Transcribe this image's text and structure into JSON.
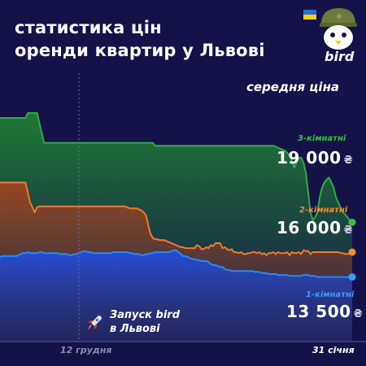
{
  "title_line1": "статистика цін",
  "title_line2": "оренди квартир у Львові",
  "subtitle": "середня ціна",
  "brand": {
    "name": "bird",
    "flag_colors": [
      "#2a6fd6",
      "#f5d20a"
    ],
    "mascot_icon": "bird-helmet-icon"
  },
  "annotation": {
    "line1": "Запуск bird",
    "line2": "в Львові",
    "icon": "rocket-icon"
  },
  "x_ticks": [
    "12 грудня",
    "31 січня"
  ],
  "currency": "₴",
  "colors": {
    "background": "#15124a",
    "three_room": "#2fae3c",
    "two_room": "#f07a26",
    "one_room": "#2f86f0",
    "three_room_label": "#35c23c",
    "two_room_label": "#ff8a2a",
    "one_room_label": "#3a9bff",
    "axis": "#5b5b8a",
    "tick_text": "#8c8caf"
  },
  "chart_data": {
    "type": "area",
    "ylim": [
      7000,
      34000
    ],
    "series": [
      {
        "name": "3-кімнатні",
        "last_label": "19 000",
        "values": [
          29500,
          29500,
          29500,
          29500,
          29500,
          29500,
          29500,
          29500,
          29500,
          29500,
          29500,
          29500,
          30000,
          30000,
          30000,
          30000,
          30000,
          29000,
          28000,
          27000,
          27000,
          27000,
          27000,
          27000,
          27000,
          27000,
          27000,
          27000,
          27000,
          27000,
          27000,
          27000,
          27000,
          27000,
          27000,
          27000,
          27000,
          27000,
          27000,
          27000,
          27000,
          27000,
          27000,
          27000,
          27000,
          27000,
          27000,
          27000,
          27000,
          27000,
          27000,
          27000,
          27000,
          27000,
          27000,
          27000,
          27000,
          27000,
          27000,
          27000,
          27000,
          27000,
          27000,
          27000,
          27000,
          27000,
          27000,
          26700,
          26700,
          26700,
          26700,
          26700,
          26700,
          26700,
          26700,
          26700,
          26700,
          26700,
          26700,
          26700,
          26700,
          26700,
          26700,
          26700,
          26700,
          26700,
          26700,
          26700,
          26700,
          26700,
          26700,
          26700,
          26700,
          26700,
          26700,
          26700,
          26700,
          26700,
          26700,
          26700,
          26700,
          26700,
          26700,
          26700,
          26700,
          26700,
          26700,
          26700,
          26700,
          26700,
          26700,
          26700,
          26700,
          26700,
          26700,
          26700,
          26700,
          26700,
          26700,
          26600,
          26500,
          26400,
          26300,
          26200,
          26000,
          25700,
          25300,
          24500,
          25000,
          25500,
          25500,
          25000,
          24000,
          22000,
          20000,
          19200,
          19500,
          20000,
          21500,
          22500,
          23000,
          23300,
          23500,
          23000,
          22500,
          21500,
          21000,
          20500,
          20000,
          19800,
          19500,
          19200,
          19000
        ]
      },
      {
        "name": "2-кімнатні",
        "last_label": "16 000",
        "values": [
          23000,
          23000,
          23000,
          23000,
          23000,
          23000,
          23000,
          23000,
          23000,
          23000,
          23000,
          23000,
          22000,
          21000,
          20500,
          20000,
          20500,
          20600,
          20600,
          20600,
          20600,
          20600,
          20600,
          20600,
          20600,
          20600,
          20600,
          20600,
          20600,
          20600,
          20600,
          20600,
          20600,
          20600,
          20600,
          20600,
          20600,
          20600,
          20600,
          20600,
          20600,
          20600,
          20600,
          20600,
          20600,
          20600,
          20600,
          20600,
          20600,
          20600,
          20600,
          20600,
          20600,
          20600,
          20600,
          20500,
          20400,
          20400,
          20400,
          20400,
          20300,
          20200,
          20000,
          19700,
          18700,
          17800,
          17400,
          17300,
          17300,
          17200,
          17200,
          17200,
          17100,
          17000,
          16900,
          16800,
          16700,
          16600,
          16500,
          16500,
          16400,
          16400,
          16400,
          16400,
          16400,
          16700,
          16600,
          16300,
          16300,
          16500,
          16400,
          16700,
          16600,
          16900,
          16900,
          16900,
          16400,
          16500,
          16300,
          16200,
          16300,
          16000,
          16000,
          15900,
          16000,
          15800,
          15800,
          15900,
          15900,
          16000,
          16000,
          15900,
          16000,
          15800,
          15900,
          15700,
          15900,
          15900,
          16000,
          15800,
          16000,
          15900,
          15900,
          15900,
          16000,
          15700,
          16000,
          15900,
          15900,
          16000,
          15800,
          16200,
          16100,
          16100,
          15800,
          16000,
          16000,
          16000,
          16000,
          16000,
          16000,
          16000,
          16000,
          16000,
          16000,
          16000,
          16000,
          15900,
          15900,
          15800,
          15800,
          15900,
          16000
        ]
      },
      {
        "name": "1-кімнатні",
        "last_label": "13 500",
        "values": [
          15500,
          15600,
          15600,
          15600,
          15600,
          15600,
          15600,
          15600,
          15700,
          15800,
          15900,
          15900,
          16000,
          15900,
          15900,
          15900,
          15900,
          16000,
          16000,
          15900,
          15900,
          15900,
          15900,
          15900,
          15900,
          15900,
          15800,
          15800,
          15800,
          15800,
          15700,
          15700,
          15800,
          15800,
          15900,
          16000,
          16100,
          16100,
          16000,
          16000,
          15900,
          15900,
          15900,
          15900,
          15900,
          15900,
          15900,
          15900,
          15900,
          16000,
          16000,
          16000,
          16000,
          16000,
          16000,
          16000,
          15900,
          15900,
          15800,
          15800,
          15800,
          15700,
          15700,
          15800,
          15800,
          15900,
          15900,
          16000,
          16000,
          16000,
          16000,
          16000,
          16000,
          16000,
          16100,
          16200,
          16200,
          16000,
          15800,
          15600,
          15600,
          15500,
          15400,
          15300,
          15300,
          15200,
          15200,
          15100,
          15100,
          15100,
          15000,
          14800,
          14700,
          14700,
          14600,
          14500,
          14500,
          14300,
          14200,
          14200,
          14100,
          14100,
          14100,
          14100,
          14100,
          14100,
          14100,
          14100,
          14100,
          14100,
          14000,
          14000,
          14000,
          13900,
          13900,
          13900,
          13800,
          13800,
          13800,
          13800,
          13700,
          13700,
          13700,
          13700,
          13700,
          13600,
          13600,
          13600,
          13600,
          13600,
          13600,
          13700,
          13700,
          13700,
          13600,
          13600,
          13600,
          13500,
          13500,
          13500,
          13500,
          13500,
          13500,
          13500,
          13500,
          13500,
          13500,
          13500,
          13500,
          13500,
          13500,
          13500,
          13500
        ]
      }
    ]
  }
}
